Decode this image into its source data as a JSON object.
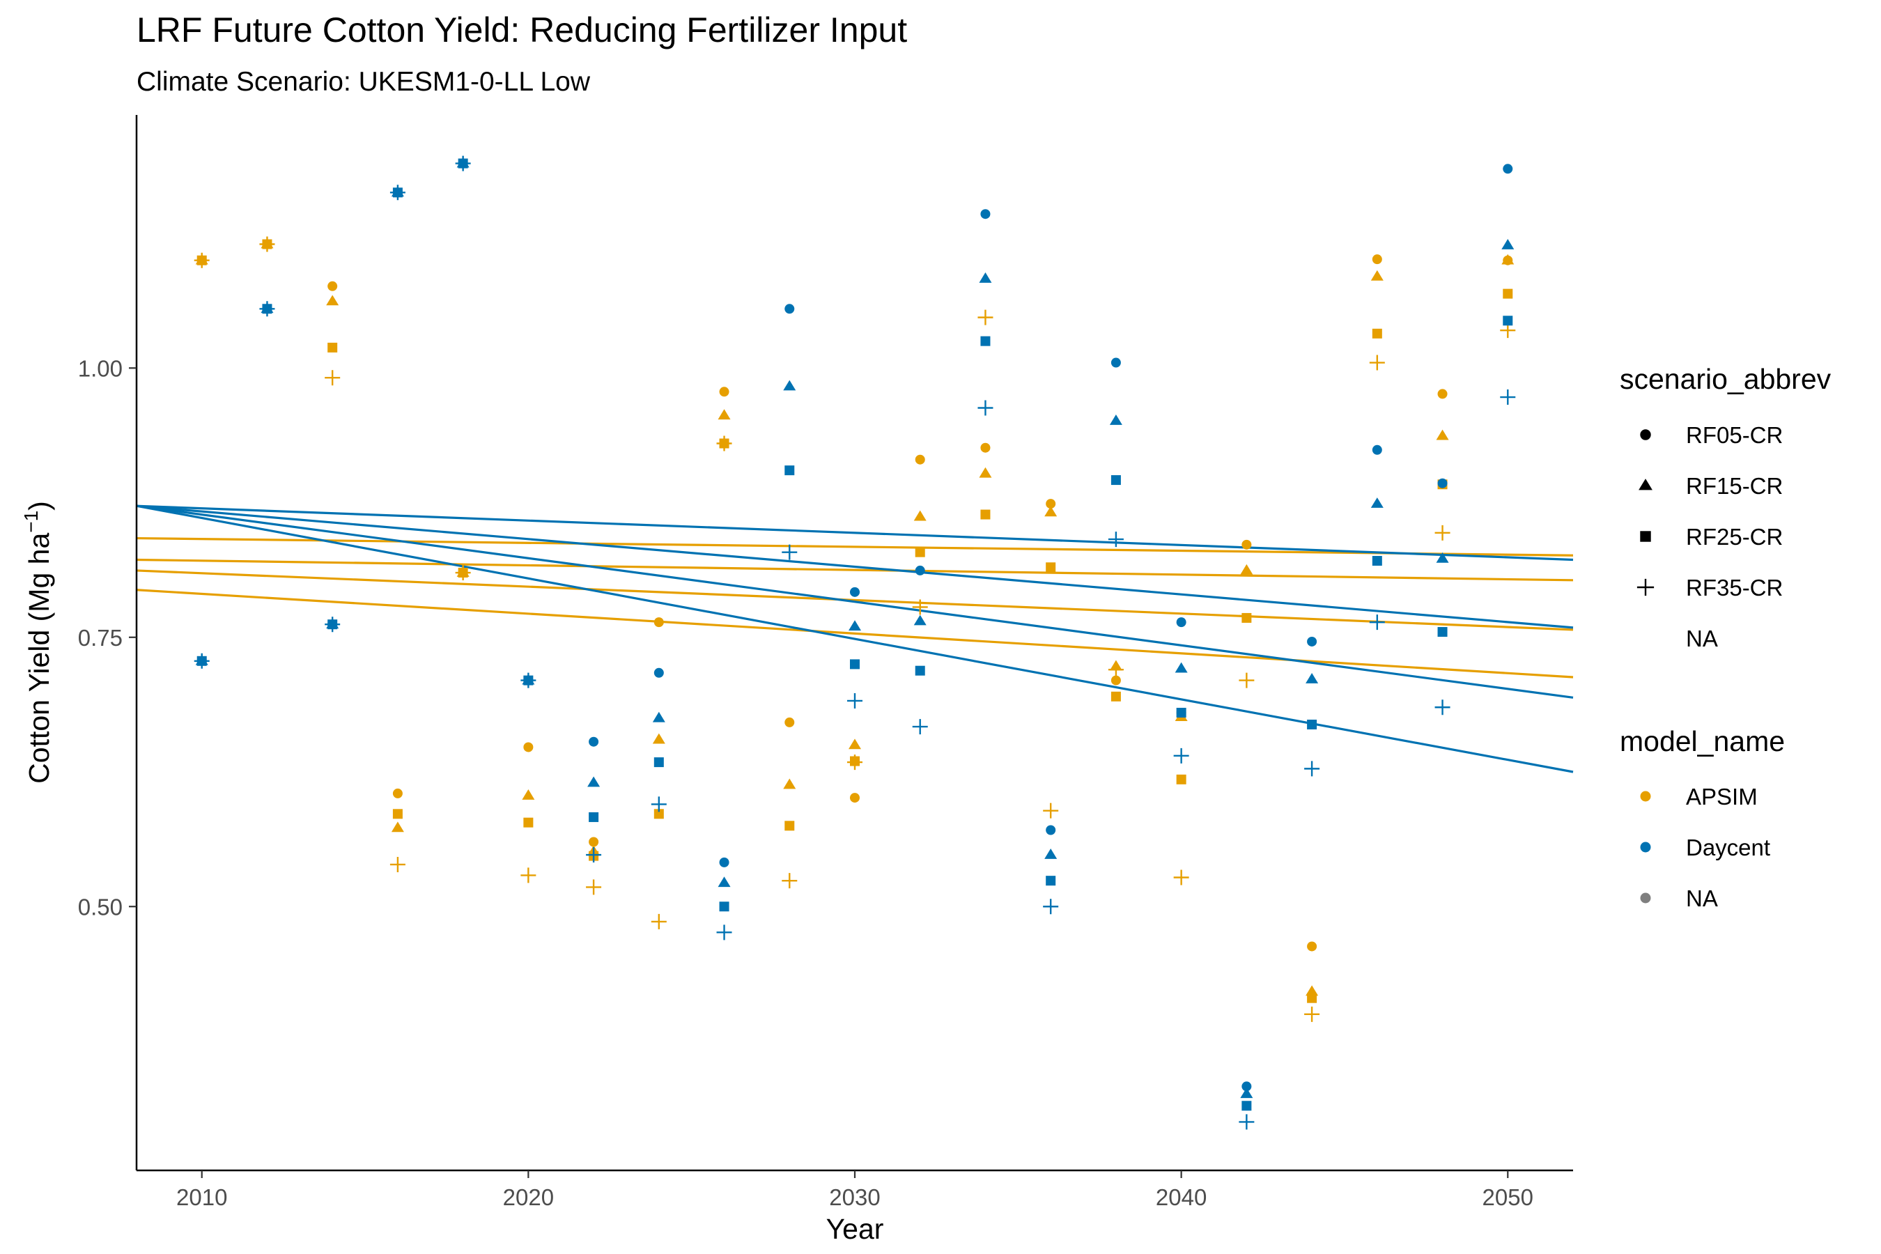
{
  "colors": {
    "APSIM": "#E69F00",
    "Daycent": "#0072B2",
    "NA": "#7F7F7F",
    "axis": "#000000",
    "tick_text": "#4d4d4d"
  },
  "chart_data": {
    "type": "scatter",
    "title": "LRF Future Cotton Yield: Reducing Fertilizer Input",
    "subtitle": "Climate Scenario: UKESM1-0-LL Low",
    "xlabel": "Year",
    "ylabel_main": "Cotton Yield (Mg ha",
    "ylabel_sup": "−1",
    "ylabel_close": ")",
    "xlim": [
      2008,
      2052
    ],
    "ylim": [
      0.255,
      1.235
    ],
    "x_ticks": [
      2010,
      2020,
      2030,
      2040,
      2050
    ],
    "x_tick_labels": [
      "2010",
      "2020",
      "2030",
      "2040",
      "2050"
    ],
    "y_ticks": [
      0.5,
      0.75,
      1.0
    ],
    "y_tick_labels": [
      "0.50",
      "0.75",
      "1.00"
    ],
    "grid": false,
    "legend_position": "right",
    "legend_shape": {
      "title": "scenario_abbrev",
      "items": [
        {
          "label": "RF05-CR",
          "shape": "circle"
        },
        {
          "label": "RF15-CR",
          "shape": "triangle"
        },
        {
          "label": "RF25-CR",
          "shape": "square"
        },
        {
          "label": "RF35-CR",
          "shape": "plus"
        },
        {
          "label": "NA",
          "shape": "none"
        }
      ]
    },
    "legend_color": {
      "title": "model_name",
      "items": [
        {
          "label": "APSIM",
          "color": "#E69F00"
        },
        {
          "label": "Daycent",
          "color": "#0072B2"
        },
        {
          "label": "NA",
          "color": "#7F7F7F"
        }
      ]
    },
    "series": [
      {
        "model": "APSIM",
        "scenario": "RF05-CR",
        "shape": "circle",
        "points": [
          [
            2010,
            1.1
          ],
          [
            2012,
            1.115
          ],
          [
            2014,
            1.076
          ],
          [
            2016,
            0.605
          ],
          [
            2018,
            0.81
          ],
          [
            2020,
            0.648
          ],
          [
            2022,
            0.56
          ],
          [
            2024,
            0.764
          ],
          [
            2026,
            0.978
          ],
          [
            2028,
            0.671
          ],
          [
            2030,
            0.601
          ],
          [
            2032,
            0.915
          ],
          [
            2034,
            0.926
          ],
          [
            2036,
            0.874
          ],
          [
            2038,
            0.71
          ],
          [
            2040,
            0.68
          ],
          [
            2042,
            0.836
          ],
          [
            2044,
            0.463
          ],
          [
            2046,
            1.101
          ],
          [
            2048,
            0.976
          ],
          [
            2050,
            1.1
          ]
        ]
      },
      {
        "model": "APSIM",
        "scenario": "RF15-CR",
        "shape": "triangle",
        "points": [
          [
            2010,
            1.1
          ],
          [
            2012,
            1.115
          ],
          [
            2014,
            1.062
          ],
          [
            2016,
            0.573
          ],
          [
            2018,
            0.81
          ],
          [
            2020,
            0.603
          ],
          [
            2022,
            0.551
          ],
          [
            2024,
            0.655
          ],
          [
            2026,
            0.956
          ],
          [
            2028,
            0.613
          ],
          [
            2030,
            0.65
          ],
          [
            2032,
            0.862
          ],
          [
            2034,
            0.902
          ],
          [
            2036,
            0.866
          ],
          [
            2038,
            0.723
          ],
          [
            2040,
            0.676
          ],
          [
            2042,
            0.812
          ],
          [
            2044,
            0.421
          ],
          [
            2046,
            1.085
          ],
          [
            2048,
            0.937
          ],
          [
            2050,
            1.1
          ]
        ]
      },
      {
        "model": "APSIM",
        "scenario": "RF25-CR",
        "shape": "square",
        "points": [
          [
            2010,
            1.1
          ],
          [
            2012,
            1.115
          ],
          [
            2014,
            1.019
          ],
          [
            2016,
            0.586
          ],
          [
            2018,
            0.81
          ],
          [
            2020,
            0.578
          ],
          [
            2022,
            0.547
          ],
          [
            2024,
            0.586
          ],
          [
            2026,
            0.93
          ],
          [
            2028,
            0.575
          ],
          [
            2030,
            0.635
          ],
          [
            2032,
            0.829
          ],
          [
            2034,
            0.864
          ],
          [
            2036,
            0.815
          ],
          [
            2038,
            0.695
          ],
          [
            2040,
            0.618
          ],
          [
            2042,
            0.768
          ],
          [
            2044,
            0.415
          ],
          [
            2046,
            1.032
          ],
          [
            2048,
            0.892
          ],
          [
            2050,
            1.069
          ]
        ]
      },
      {
        "model": "APSIM",
        "scenario": "RF35-CR",
        "shape": "plus",
        "points": [
          [
            2010,
            1.1
          ],
          [
            2012,
            1.115
          ],
          [
            2014,
            0.991
          ],
          [
            2016,
            0.539
          ],
          [
            2018,
            0.81
          ],
          [
            2020,
            0.529
          ],
          [
            2022,
            0.518
          ],
          [
            2024,
            0.486
          ],
          [
            2026,
            0.93
          ],
          [
            2028,
            0.524
          ],
          [
            2030,
            0.634
          ],
          [
            2032,
            0.778
          ],
          [
            2034,
            1.047
          ],
          [
            2036,
            0.589
          ],
          [
            2038,
            0.72
          ],
          [
            2040,
            0.527
          ],
          [
            2042,
            0.71
          ],
          [
            2044,
            0.4
          ],
          [
            2046,
            1.005
          ],
          [
            2048,
            0.847
          ],
          [
            2050,
            1.035
          ]
        ]
      },
      {
        "model": "Daycent",
        "scenario": "RF05-CR",
        "shape": "circle",
        "points": [
          [
            2010,
            0.728
          ],
          [
            2012,
            1.055
          ],
          [
            2014,
            0.762
          ],
          [
            2016,
            1.163
          ],
          [
            2018,
            1.19
          ],
          [
            2020,
            0.71
          ],
          [
            2022,
            0.653
          ],
          [
            2024,
            0.717
          ],
          [
            2026,
            0.541
          ],
          [
            2028,
            1.055
          ],
          [
            2030,
            0.792
          ],
          [
            2032,
            0.812
          ],
          [
            2034,
            1.143
          ],
          [
            2036,
            0.571
          ],
          [
            2038,
            1.005
          ],
          [
            2040,
            0.764
          ],
          [
            2042,
            0.333
          ],
          [
            2044,
            0.746
          ],
          [
            2046,
            0.924
          ],
          [
            2048,
            0.893
          ],
          [
            2050,
            1.185
          ]
        ]
      },
      {
        "model": "Daycent",
        "scenario": "RF15-CR",
        "shape": "triangle",
        "points": [
          [
            2010,
            0.728
          ],
          [
            2012,
            1.055
          ],
          [
            2014,
            0.762
          ],
          [
            2016,
            1.163
          ],
          [
            2018,
            1.19
          ],
          [
            2020,
            0.71
          ],
          [
            2022,
            0.615
          ],
          [
            2024,
            0.675
          ],
          [
            2026,
            0.522
          ],
          [
            2028,
            0.983
          ],
          [
            2030,
            0.76
          ],
          [
            2032,
            0.765
          ],
          [
            2034,
            1.083
          ],
          [
            2036,
            0.548
          ],
          [
            2038,
            0.951
          ],
          [
            2040,
            0.721
          ],
          [
            2042,
            0.326
          ],
          [
            2044,
            0.711
          ],
          [
            2046,
            0.874
          ],
          [
            2048,
            0.823
          ],
          [
            2050,
            1.114
          ]
        ]
      },
      {
        "model": "Daycent",
        "scenario": "RF25-CR",
        "shape": "square",
        "points": [
          [
            2010,
            0.728
          ],
          [
            2012,
            1.055
          ],
          [
            2014,
            0.762
          ],
          [
            2016,
            1.163
          ],
          [
            2018,
            1.19
          ],
          [
            2020,
            0.71
          ],
          [
            2022,
            0.583
          ],
          [
            2024,
            0.634
          ],
          [
            2026,
            0.5
          ],
          [
            2028,
            0.905
          ],
          [
            2030,
            0.725
          ],
          [
            2032,
            0.719
          ],
          [
            2034,
            1.025
          ],
          [
            2036,
            0.524
          ],
          [
            2038,
            0.896
          ],
          [
            2040,
            0.68
          ],
          [
            2042,
            0.315
          ],
          [
            2044,
            0.669
          ],
          [
            2046,
            0.821
          ],
          [
            2048,
            0.755
          ],
          [
            2050,
            1.044
          ]
        ]
      },
      {
        "model": "Daycent",
        "scenario": "RF35-CR",
        "shape": "plus",
        "points": [
          [
            2010,
            0.728
          ],
          [
            2012,
            1.055
          ],
          [
            2014,
            0.762
          ],
          [
            2016,
            1.163
          ],
          [
            2018,
            1.19
          ],
          [
            2020,
            0.71
          ],
          [
            2022,
            0.548
          ],
          [
            2024,
            0.595
          ],
          [
            2026,
            0.476
          ],
          [
            2028,
            0.829
          ],
          [
            2030,
            0.691
          ],
          [
            2032,
            0.667
          ],
          [
            2034,
            0.963
          ],
          [
            2036,
            0.5
          ],
          [
            2038,
            0.841
          ],
          [
            2040,
            0.64
          ],
          [
            2042,
            0.3
          ],
          [
            2044,
            0.628
          ],
          [
            2046,
            0.764
          ],
          [
            2048,
            0.685
          ],
          [
            2050,
            0.973
          ]
        ]
      }
    ],
    "trend_lines": [
      {
        "model": "APSIM",
        "scenario": "RF05-CR",
        "y_start": 0.842,
        "y_end": 0.826
      },
      {
        "model": "APSIM",
        "scenario": "RF15-CR",
        "y_start": 0.822,
        "y_end": 0.803
      },
      {
        "model": "APSIM",
        "scenario": "RF25-CR",
        "y_start": 0.812,
        "y_end": 0.757
      },
      {
        "model": "APSIM",
        "scenario": "RF35-CR",
        "y_start": 0.794,
        "y_end": 0.713
      },
      {
        "model": "Daycent",
        "scenario": "RF05-CR",
        "y_start": 0.872,
        "y_end": 0.822
      },
      {
        "model": "Daycent",
        "scenario": "RF15-CR",
        "y_start": 0.872,
        "y_end": 0.759
      },
      {
        "model": "Daycent",
        "scenario": "RF25-CR",
        "y_start": 0.872,
        "y_end": 0.694
      },
      {
        "model": "Daycent",
        "scenario": "RF35-CR",
        "y_start": 0.872,
        "y_end": 0.625
      }
    ]
  }
}
